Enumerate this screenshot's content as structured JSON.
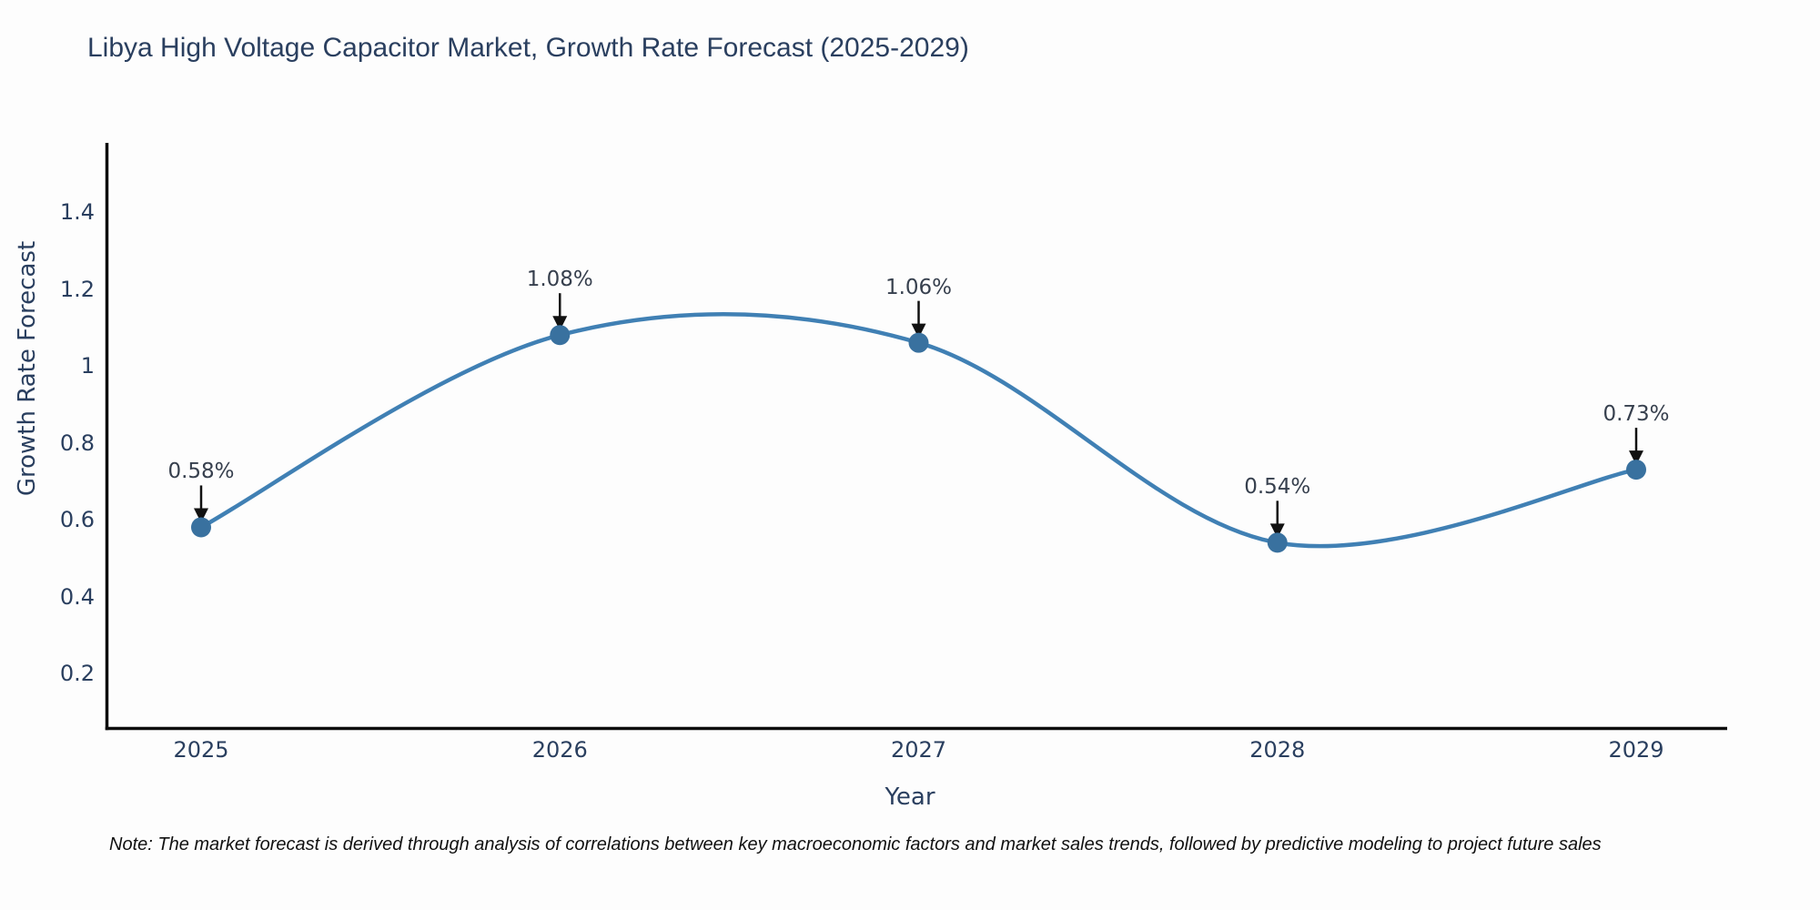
{
  "title": "Libya High Voltage Capacitor Market, Growth Rate Forecast (2025-2029)",
  "note": "Note: The market forecast is derived through analysis of correlations between key macroeconomic factors and market sales trends, followed by predictive modeling to project future sales",
  "chart_data": {
    "type": "line",
    "title": "Libya High Voltage Capacitor Market, Growth Rate Forecast (2025-2029)",
    "xlabel": "Year",
    "ylabel": "Growth Rate Forecast",
    "categories": [
      "2025",
      "2026",
      "2027",
      "2028",
      "2029"
    ],
    "values": [
      0.58,
      1.08,
      1.06,
      0.54,
      0.73
    ],
    "point_labels": [
      "0.58%",
      "1.08%",
      "1.06%",
      "0.54%",
      "0.73%"
    ],
    "ytick_labels": [
      "0.2",
      "0.4",
      "0.6",
      "0.8",
      "1",
      "1.2",
      "1.4"
    ],
    "yticks": [
      0.2,
      0.4,
      0.6,
      0.8,
      1.0,
      1.2,
      1.4
    ],
    "ylim": [
      0.055,
      1.58
    ],
    "grid": false,
    "legend": "none",
    "curve": "spline",
    "colors": {
      "line": "#4080b4",
      "marker": "#39719f",
      "annotation_text": "#37404e",
      "axis_text": "#2a3f5f",
      "spine": "#0d0d0d",
      "arrow": "#111111",
      "background": "#fdfdfd"
    }
  }
}
